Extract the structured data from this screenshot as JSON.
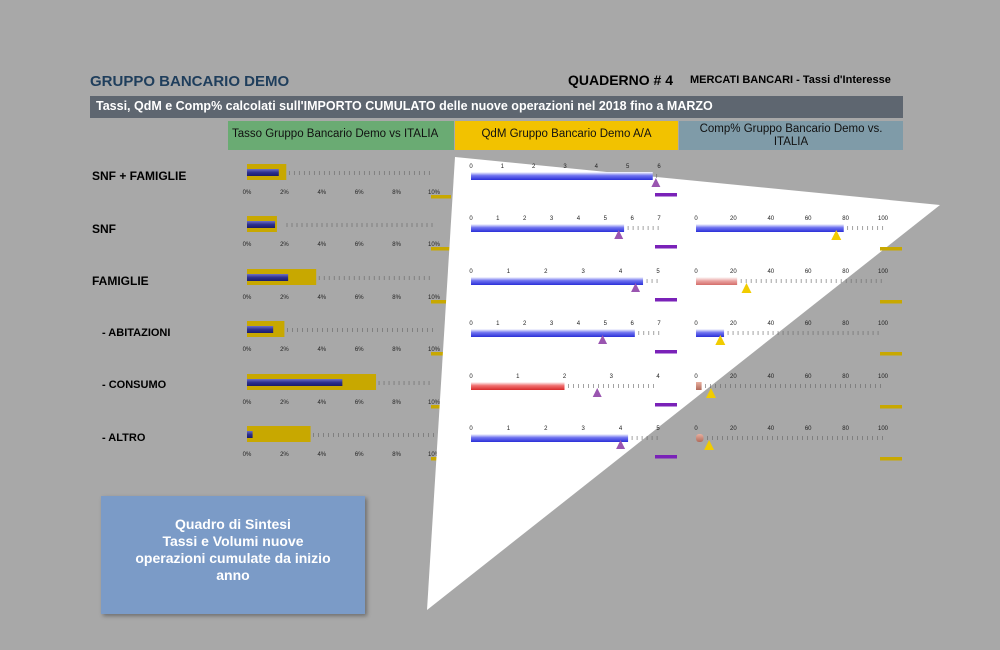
{
  "header": {
    "title": "GRUPPO BANCARIO DEMO",
    "quaderno": "QUADERNO # 4",
    "section": "MERCATI BANCARI - Tassi d'Interesse"
  },
  "subtitle": "Tassi, QdM e Comp% calcolati sull'IMPORTO CUMULATO delle nuove operazioni nel 2018 fino a MARZO",
  "columns": {
    "rate": "Tasso Gruppo Bancario Demo vs ITALIA",
    "qdm": "QdM Gruppo Bancario Demo A/A",
    "comp_line1": "Comp%  Gruppo Bancario Demo vs.",
    "comp_line2": "ITALIA"
  },
  "summary": {
    "line1": "Quadro di Sintesi",
    "line2": "Tassi e Volumi nuove",
    "line3": "operazioni cumulate da inizio",
    "line4": "anno"
  },
  "colors": {
    "title": "#1f3e5c",
    "rate_header": "#6aab73",
    "qdm_header": "#f2c200",
    "comp_header": "#7f9ba8",
    "gold_bar": "#c8a800",
    "navy_bar": "#2d2f8e",
    "blue_bar": "#3f43e0",
    "red_bar": "#e63b3b",
    "purple_marker": "#9a55b0",
    "yellow_marker": "#f1cc00"
  },
  "chart_data": [
    {
      "type": "bar",
      "title": "Tasso Gruppo Bancario Demo vs ITALIA",
      "categories": [
        "SNF + FAMIGLIE",
        "SNF",
        "FAMIGLIE",
        "- ABITAZIONI",
        "- CONSUMO",
        "- ALTRO"
      ],
      "ticks": [
        "0%",
        "2%",
        "4%",
        "6%",
        "8%",
        "10%"
      ],
      "xlim": [
        0,
        10
      ],
      "series": [
        {
          "name": "ITALIA",
          "values": [
            2.1,
            1.6,
            3.7,
            2.0,
            6.9,
            3.4
          ]
        },
        {
          "name": "Gruppo Bancario Demo",
          "values": [
            1.7,
            1.5,
            2.2,
            1.4,
            5.1,
            0.3
          ]
        }
      ]
    },
    {
      "type": "bar",
      "title": "QdM Gruppo Bancario Demo A/A",
      "categories": [
        "SNF + FAMIGLIE",
        "SNF",
        "FAMIGLIE",
        "- ABITAZIONI",
        "- CONSUMO",
        "- ALTRO"
      ],
      "xlim": [
        [
          0,
          6
        ],
        [
          0,
          7
        ],
        [
          0,
          5
        ],
        [
          0,
          7
        ],
        [
          0,
          4
        ],
        [
          0,
          5
        ]
      ],
      "ticks": [
        [
          "0",
          "1",
          "2",
          "3",
          "4",
          "5",
          "6"
        ],
        [
          "0",
          "1",
          "2",
          "3",
          "4",
          "5",
          "6",
          "7"
        ],
        [
          "0",
          "1",
          "2",
          "3",
          "4",
          "5"
        ],
        [
          "0",
          "1",
          "2",
          "3",
          "4",
          "5",
          "6",
          "7"
        ],
        [
          "0",
          "1",
          "2",
          "3",
          "4"
        ],
        [
          "0",
          "1",
          "2",
          "3",
          "4",
          "5"
        ]
      ],
      "series": [
        {
          "values": [
            5.8,
            5.7,
            4.6,
            6.1,
            2.0,
            4.2
          ]
        },
        {
          "values": [
            5.9,
            5.5,
            4.4,
            4.9,
            2.7,
            4.0
          ]
        }
      ]
    },
    {
      "type": "bar",
      "title": "Comp%  Gruppo Bancario Demo vs. ITALIA",
      "categories": [
        "SNF",
        "FAMIGLIE",
        "- ABITAZIONI",
        "- CONSUMO",
        "- ALTRO"
      ],
      "xlim": [
        0,
        100
      ],
      "ticks": [
        "0",
        "20",
        "40",
        "60",
        "80",
        "100"
      ],
      "series": [
        {
          "values": [
            79,
            22,
            15,
            3,
            4
          ]
        },
        {
          "values": [
            75,
            27,
            13,
            8,
            7
          ]
        }
      ]
    }
  ]
}
